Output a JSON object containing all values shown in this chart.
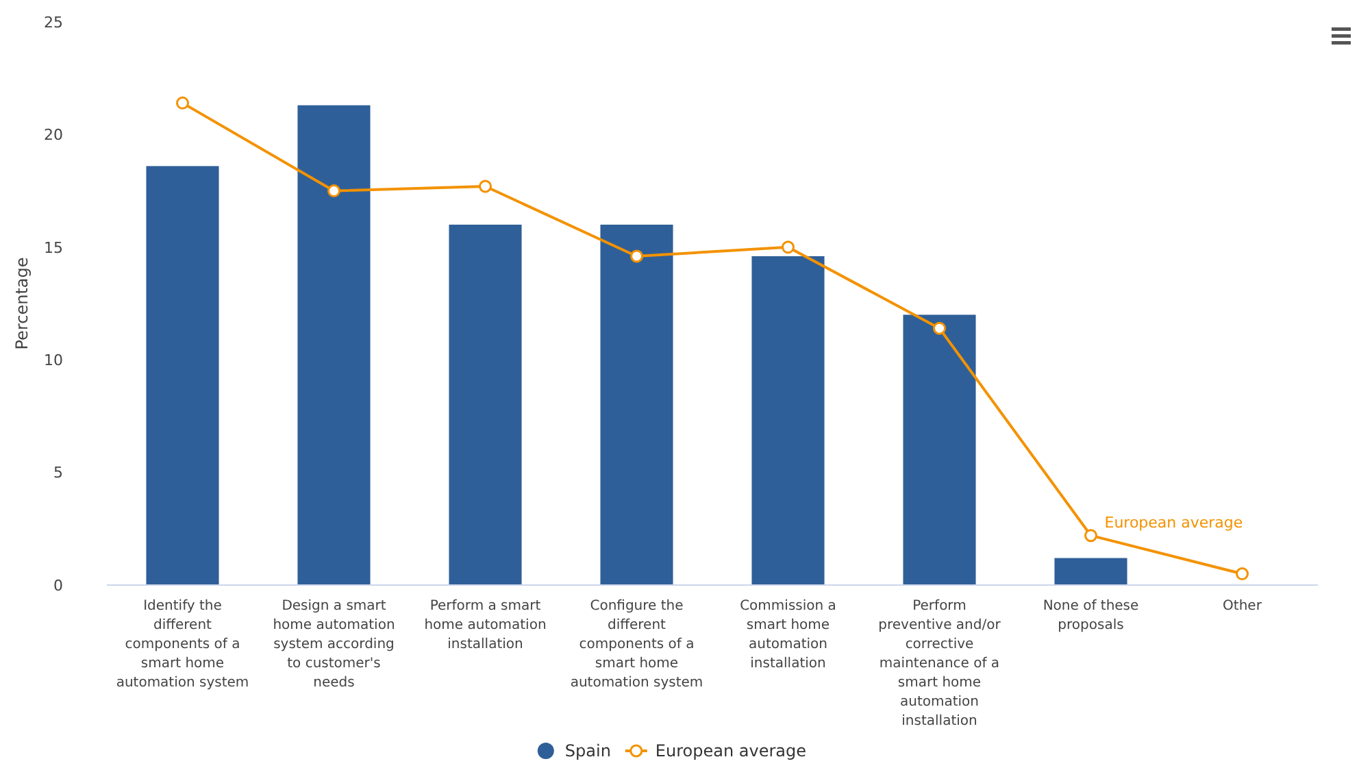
{
  "chart_data": {
    "type": "bar",
    "ylabel": "Percentage",
    "categories": [
      "Identify the different components of a smart home automation system",
      "Design a smart home automation system according to customer's needs",
      "Perform a smart home automation installation",
      "Configure the different components of a smart home automation system",
      "Commission a smart home automation installation",
      "Perform preventive and/or corrective maintenance of a smart home automation installation",
      "None of these proposals",
      "Other"
    ],
    "series": [
      {
        "name": "Spain",
        "color": "#2f5f98",
        "values": [
          18.6,
          21.3,
          16.0,
          16.0,
          14.6,
          12.0,
          1.2,
          null
        ]
      },
      {
        "name": "European average",
        "type": "line",
        "color": "#f39200",
        "marker": "circle",
        "values": [
          21.4,
          17.5,
          17.7,
          14.6,
          15.0,
          11.4,
          2.2,
          0.5
        ]
      }
    ],
    "ylim": [
      0,
      25
    ],
    "yticks": [
      0,
      5,
      10,
      15,
      20,
      25
    ],
    "grid": false,
    "legend": "bottom",
    "annotations": [
      "European average"
    ]
  }
}
